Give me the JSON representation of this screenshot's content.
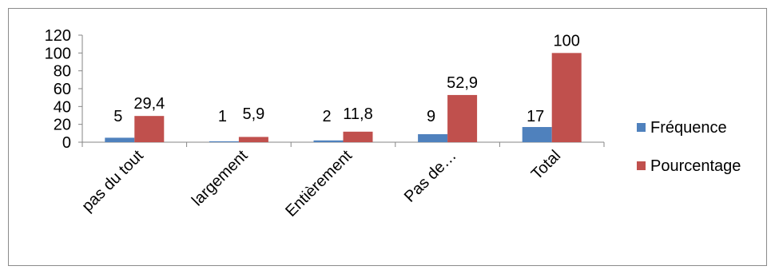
{
  "chart_data": {
    "type": "bar",
    "title": "",
    "xlabel": "",
    "ylabel": "",
    "categories": [
      "pas du tout",
      "largement",
      "Entièrement",
      "Pas de…",
      "Total"
    ],
    "series": [
      {
        "name": "Fréquence",
        "color": "#4f81bd",
        "values": [
          5,
          1,
          2,
          9,
          17
        ],
        "labels": [
          "5",
          "1",
          "2",
          "9",
          "17"
        ]
      },
      {
        "name": "Pourcentage",
        "color": "#c0504d",
        "values": [
          29.4,
          5.9,
          11.8,
          52.9,
          100
        ],
        "labels": [
          "29,4",
          "5,9",
          "11,8",
          "52,9",
          "100"
        ]
      }
    ],
    "ylim": [
      0,
      120
    ],
    "yticks": [
      "0",
      "20",
      "40",
      "60",
      "80",
      "100",
      "120"
    ],
    "grid": false,
    "legend_position": "right",
    "axis_color": "#868686"
  }
}
